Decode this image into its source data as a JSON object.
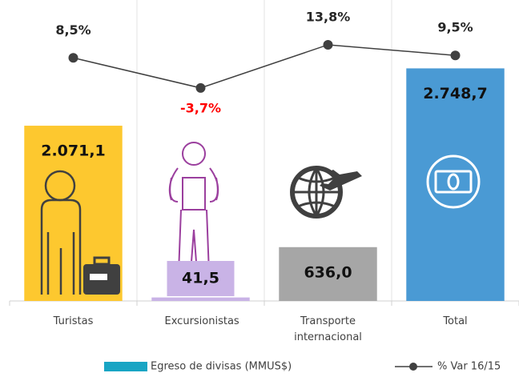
{
  "chart_data": {
    "type": "bar",
    "categories": [
      "Turistas",
      "Excursionistas",
      "Transporte internacional",
      "Total"
    ],
    "series": [
      {
        "name": "Egreso de divisas (MMUS$)",
        "color": "#19a5c4",
        "bar_colors": [
          "#fdc82f",
          "#c9b3e6",
          "#a6a6a6",
          "#4a9ad4"
        ],
        "values": [
          2071.1,
          41.5,
          636.0,
          2748.7
        ],
        "value_labels": [
          "2.071,1",
          "41,5",
          "636,0",
          "2.748,7"
        ]
      },
      {
        "name": "% Var 16/15",
        "type": "line",
        "axis": "y2",
        "color": "#404040",
        "values": [
          8.5,
          -3.7,
          13.8,
          9.5
        ],
        "value_labels": [
          "8,5%",
          "-3,7%",
          "13,8%",
          "9,5%"
        ]
      }
    ],
    "negative_label_color": "#ff0000",
    "ylim": [
      0,
      3500
    ],
    "y2lim": [
      -90,
      30
    ]
  }
}
